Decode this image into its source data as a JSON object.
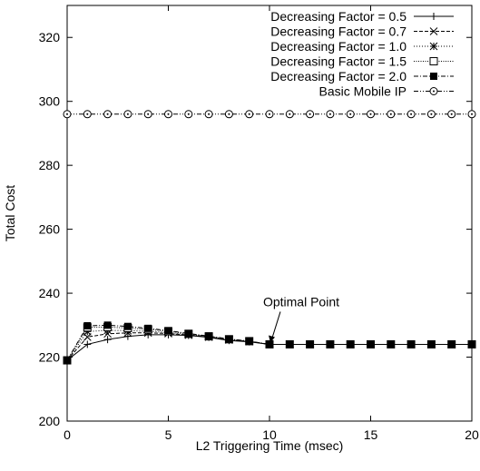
{
  "chart_data": {
    "type": "line",
    "xlabel": "L2 Triggering Time (msec)",
    "ylabel": "Total Cost",
    "xlim": [
      0,
      20
    ],
    "ylim": [
      200,
      330
    ],
    "xticks": [
      0,
      5,
      10,
      15,
      20
    ],
    "yticks": [
      200,
      220,
      240,
      260,
      280,
      300,
      320
    ],
    "x": [
      0,
      1,
      2,
      3,
      4,
      5,
      6,
      7,
      8,
      9,
      10,
      11,
      12,
      13,
      14,
      15,
      16,
      17,
      18,
      19,
      20
    ],
    "legend_position": "top-right",
    "series": [
      {
        "name": "Decreasing Factor = 0.5",
        "marker": "plus",
        "dash": "solid",
        "values": [
          219,
          224,
          225.5,
          226.5,
          227,
          227,
          226.8,
          226.2,
          225.2,
          224.8,
          224,
          224,
          224,
          224,
          224,
          224,
          224,
          224,
          224,
          224,
          224
        ]
      },
      {
        "name": "Decreasing Factor = 0.7",
        "marker": "cross",
        "dash": "dashed",
        "values": [
          219,
          226.3,
          227.3,
          227.6,
          227.6,
          227.4,
          226.9,
          226.3,
          225.4,
          224.9,
          224,
          224,
          224,
          224,
          224,
          224,
          224,
          224,
          224,
          224,
          224
        ]
      },
      {
        "name": "Decreasing Factor = 1.0",
        "marker": "star",
        "dash": "dotted",
        "values": [
          219,
          228,
          228.4,
          228.3,
          228.1,
          227.7,
          227.1,
          226.4,
          225.5,
          224.9,
          224,
          224,
          224,
          224,
          224,
          224,
          224,
          224,
          224,
          224,
          224
        ]
      },
      {
        "name": "Decreasing Factor = 1.5",
        "marker": "square-open",
        "dash": "fine-dotted",
        "values": [
          219,
          229.3,
          229.4,
          229.1,
          228.7,
          228.1,
          227.3,
          226.5,
          225.6,
          225,
          224,
          224,
          224,
          224,
          224,
          224,
          224,
          224,
          224,
          224,
          224
        ]
      },
      {
        "name": "Decreasing Factor = 2.0",
        "marker": "square-filled",
        "dash": "dash-dot",
        "values": [
          219,
          229.8,
          230,
          229.6,
          229,
          228.3,
          227.4,
          226.6,
          225.7,
          225,
          224,
          224,
          224,
          224,
          224,
          224,
          224,
          224,
          224,
          224,
          224
        ]
      },
      {
        "name": "Basic Mobile IP",
        "marker": "circle-dot",
        "dash": "dash-dot-dot",
        "values": [
          296,
          296,
          296,
          296,
          296,
          296,
          296,
          296,
          296,
          296,
          296,
          296,
          296,
          296,
          296,
          296,
          296,
          296,
          296,
          296,
          296
        ]
      }
    ],
    "annotation": {
      "text": "Optimal Point",
      "x": 10,
      "y": 224
    }
  }
}
